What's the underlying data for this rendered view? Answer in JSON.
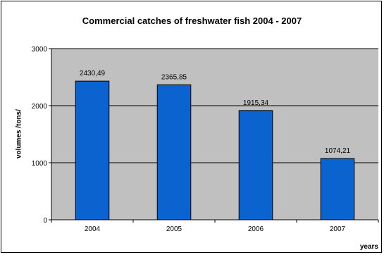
{
  "chart_data": {
    "type": "bar",
    "title": "Commercial catches of freshwater fish 2004 - 2007",
    "xlabel": "years",
    "ylabel": "volumes /tons/",
    "categories": [
      "2004",
      "2005",
      "2006",
      "2007"
    ],
    "values": [
      2430.49,
      2365.85,
      1915.34,
      1074.21
    ],
    "value_labels": [
      "2430,49",
      "2365,85",
      "1915,34",
      "1074,21"
    ],
    "ylim": [
      0,
      3000
    ],
    "yticks": [
      0,
      1000,
      2000,
      3000
    ],
    "ytick_labels": [
      "0",
      "1000",
      "2000",
      "3000"
    ],
    "grid": true,
    "legend": "none",
    "colors": {
      "bar": "#0a63cf",
      "bar_stroke": "#000000",
      "plot_background": "#c0c0c0",
      "grid": "#000000"
    }
  }
}
